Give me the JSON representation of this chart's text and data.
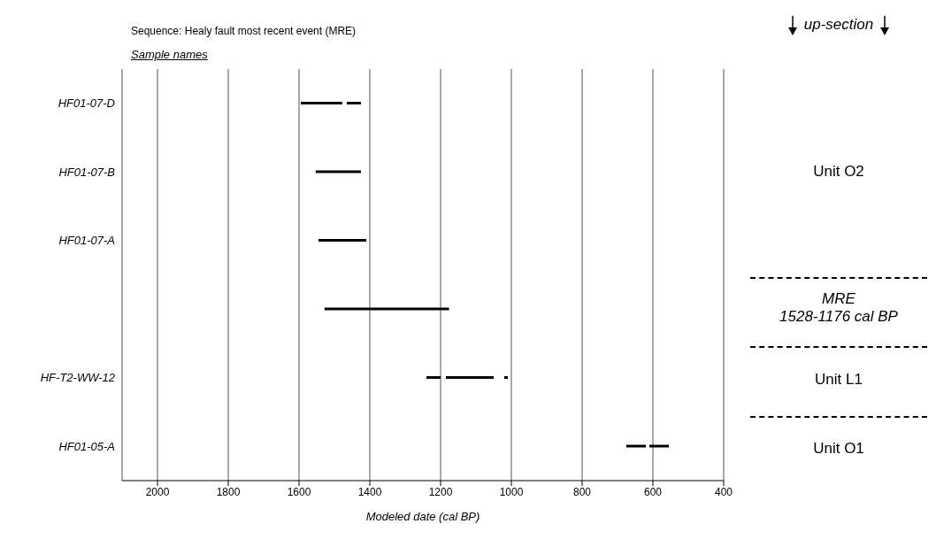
{
  "chart_data": {
    "type": "bar",
    "orientation": "horizontal",
    "title": "Sequence: Healy fault most recent event (MRE)",
    "xlabel": "Modeled date (cal BP)",
    "categories": [
      "HF01-07-D",
      "HF01-07-B",
      "HF01-07-A",
      null,
      "HF-T2-WW-12",
      "HF01-05-A"
    ],
    "series": [
      {
        "color": "#000000",
        "base": [
          1478,
          1425,
          1410,
          1176,
          1200,
          620
        ],
        "values": [
          117,
          128,
          135,
          352,
          40,
          55
        ]
      },
      {
        "color": "#000000",
        "base": [
          1425,
          null,
          null,
          null,
          1050,
          555
        ],
        "values": [
          40,
          null,
          null,
          null,
          135,
          55
        ]
      },
      {
        "color": "#000000",
        "base": [
          null,
          null,
          null,
          null,
          1010,
          null
        ],
        "values": [
          null,
          null,
          null,
          null,
          10,
          null
        ]
      }
    ],
    "xlim": [
      2100,
      400
    ],
    "xticks": [
      2000,
      1800,
      1600,
      1400,
      1200,
      1000,
      800,
      600,
      400
    ],
    "grid": "x",
    "annotations": [
      "Sample names",
      "up-section",
      "Unit O2",
      "MRE\n1528-1176 cal BP",
      "Unit L1",
      "Unit O1"
    ]
  }
}
